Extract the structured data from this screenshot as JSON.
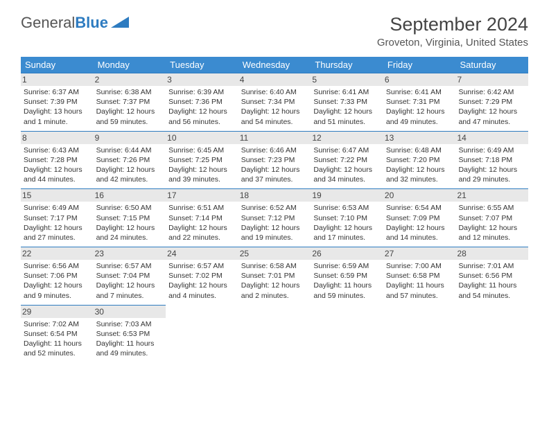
{
  "brand": {
    "part1": "General",
    "part2": "Blue"
  },
  "title": "September 2024",
  "location": "Groveton, Virginia, United States",
  "colors": {
    "header_bg": "#3b8bd0",
    "header_border": "#2d7bc0",
    "daynum_bg": "#e8e8e8",
    "text": "#333333"
  },
  "day_names": [
    "Sunday",
    "Monday",
    "Tuesday",
    "Wednesday",
    "Thursday",
    "Friday",
    "Saturday"
  ],
  "weeks": [
    [
      {
        "n": "1",
        "sr": "Sunrise: 6:37 AM",
        "ss": "Sunset: 7:39 PM",
        "dl": "Daylight: 13 hours and 1 minute."
      },
      {
        "n": "2",
        "sr": "Sunrise: 6:38 AM",
        "ss": "Sunset: 7:37 PM",
        "dl": "Daylight: 12 hours and 59 minutes."
      },
      {
        "n": "3",
        "sr": "Sunrise: 6:39 AM",
        "ss": "Sunset: 7:36 PM",
        "dl": "Daylight: 12 hours and 56 minutes."
      },
      {
        "n": "4",
        "sr": "Sunrise: 6:40 AM",
        "ss": "Sunset: 7:34 PM",
        "dl": "Daylight: 12 hours and 54 minutes."
      },
      {
        "n": "5",
        "sr": "Sunrise: 6:41 AM",
        "ss": "Sunset: 7:33 PM",
        "dl": "Daylight: 12 hours and 51 minutes."
      },
      {
        "n": "6",
        "sr": "Sunrise: 6:41 AM",
        "ss": "Sunset: 7:31 PM",
        "dl": "Daylight: 12 hours and 49 minutes."
      },
      {
        "n": "7",
        "sr": "Sunrise: 6:42 AM",
        "ss": "Sunset: 7:29 PM",
        "dl": "Daylight: 12 hours and 47 minutes."
      }
    ],
    [
      {
        "n": "8",
        "sr": "Sunrise: 6:43 AM",
        "ss": "Sunset: 7:28 PM",
        "dl": "Daylight: 12 hours and 44 minutes."
      },
      {
        "n": "9",
        "sr": "Sunrise: 6:44 AM",
        "ss": "Sunset: 7:26 PM",
        "dl": "Daylight: 12 hours and 42 minutes."
      },
      {
        "n": "10",
        "sr": "Sunrise: 6:45 AM",
        "ss": "Sunset: 7:25 PM",
        "dl": "Daylight: 12 hours and 39 minutes."
      },
      {
        "n": "11",
        "sr": "Sunrise: 6:46 AM",
        "ss": "Sunset: 7:23 PM",
        "dl": "Daylight: 12 hours and 37 minutes."
      },
      {
        "n": "12",
        "sr": "Sunrise: 6:47 AM",
        "ss": "Sunset: 7:22 PM",
        "dl": "Daylight: 12 hours and 34 minutes."
      },
      {
        "n": "13",
        "sr": "Sunrise: 6:48 AM",
        "ss": "Sunset: 7:20 PM",
        "dl": "Daylight: 12 hours and 32 minutes."
      },
      {
        "n": "14",
        "sr": "Sunrise: 6:49 AM",
        "ss": "Sunset: 7:18 PM",
        "dl": "Daylight: 12 hours and 29 minutes."
      }
    ],
    [
      {
        "n": "15",
        "sr": "Sunrise: 6:49 AM",
        "ss": "Sunset: 7:17 PM",
        "dl": "Daylight: 12 hours and 27 minutes."
      },
      {
        "n": "16",
        "sr": "Sunrise: 6:50 AM",
        "ss": "Sunset: 7:15 PM",
        "dl": "Daylight: 12 hours and 24 minutes."
      },
      {
        "n": "17",
        "sr": "Sunrise: 6:51 AM",
        "ss": "Sunset: 7:14 PM",
        "dl": "Daylight: 12 hours and 22 minutes."
      },
      {
        "n": "18",
        "sr": "Sunrise: 6:52 AM",
        "ss": "Sunset: 7:12 PM",
        "dl": "Daylight: 12 hours and 19 minutes."
      },
      {
        "n": "19",
        "sr": "Sunrise: 6:53 AM",
        "ss": "Sunset: 7:10 PM",
        "dl": "Daylight: 12 hours and 17 minutes."
      },
      {
        "n": "20",
        "sr": "Sunrise: 6:54 AM",
        "ss": "Sunset: 7:09 PM",
        "dl": "Daylight: 12 hours and 14 minutes."
      },
      {
        "n": "21",
        "sr": "Sunrise: 6:55 AM",
        "ss": "Sunset: 7:07 PM",
        "dl": "Daylight: 12 hours and 12 minutes."
      }
    ],
    [
      {
        "n": "22",
        "sr": "Sunrise: 6:56 AM",
        "ss": "Sunset: 7:06 PM",
        "dl": "Daylight: 12 hours and 9 minutes."
      },
      {
        "n": "23",
        "sr": "Sunrise: 6:57 AM",
        "ss": "Sunset: 7:04 PM",
        "dl": "Daylight: 12 hours and 7 minutes."
      },
      {
        "n": "24",
        "sr": "Sunrise: 6:57 AM",
        "ss": "Sunset: 7:02 PM",
        "dl": "Daylight: 12 hours and 4 minutes."
      },
      {
        "n": "25",
        "sr": "Sunrise: 6:58 AM",
        "ss": "Sunset: 7:01 PM",
        "dl": "Daylight: 12 hours and 2 minutes."
      },
      {
        "n": "26",
        "sr": "Sunrise: 6:59 AM",
        "ss": "Sunset: 6:59 PM",
        "dl": "Daylight: 11 hours and 59 minutes."
      },
      {
        "n": "27",
        "sr": "Sunrise: 7:00 AM",
        "ss": "Sunset: 6:58 PM",
        "dl": "Daylight: 11 hours and 57 minutes."
      },
      {
        "n": "28",
        "sr": "Sunrise: 7:01 AM",
        "ss": "Sunset: 6:56 PM",
        "dl": "Daylight: 11 hours and 54 minutes."
      }
    ],
    [
      {
        "n": "29",
        "sr": "Sunrise: 7:02 AM",
        "ss": "Sunset: 6:54 PM",
        "dl": "Daylight: 11 hours and 52 minutes."
      },
      {
        "n": "30",
        "sr": "Sunrise: 7:03 AM",
        "ss": "Sunset: 6:53 PM",
        "dl": "Daylight: 11 hours and 49 minutes."
      },
      null,
      null,
      null,
      null,
      null
    ]
  ]
}
